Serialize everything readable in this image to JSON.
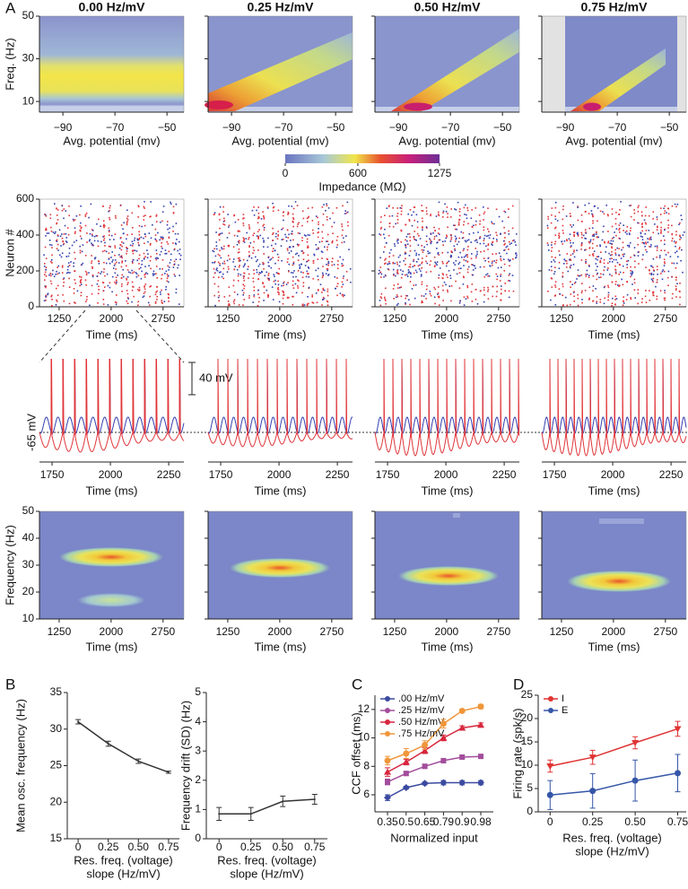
{
  "chart_data": [
    {
      "type": "heatmap-row",
      "panel_label": "A",
      "titles": [
        "0.00 Hz/mV",
        "0.25 Hz/mV",
        "0.50 Hz/mV",
        "0.75 Hz/mV"
      ],
      "ylabel": "Freq. (Hz)",
      "ylim": [
        5,
        50
      ],
      "yticks": [
        10,
        30,
        50
      ],
      "xlabel": "Avg. potential (mv)",
      "xlim": [
        -99,
        -43.5
      ],
      "xticks": [
        {
          "value": -90,
          "label": "−90"
        },
        {
          "value": -70,
          "label": "−70"
        },
        {
          "value": -50,
          "label": "−50"
        }
      ],
      "colorbar": {
        "label": "Impedance (MΩ)",
        "lim": [
          0,
          1275
        ],
        "ticks": [
          0,
          600,
          1275
        ]
      }
    },
    {
      "type": "raster",
      "ylabel": "Neuron #",
      "ylim": [
        0,
        600
      ],
      "yticks": [
        0,
        200,
        400,
        600
      ],
      "xlabel": "Time (ms)",
      "xlim": [
        966,
        3050
      ],
      "xticks": [
        1250,
        2000,
        2750
      ]
    },
    {
      "type": "trace",
      "baseline_label": "-65 mV",
      "scale_bar_label": "40 mV",
      "xlabel": "Time (ms)",
      "xlim": [
        1696,
        2315
      ],
      "xticks": [
        1750,
        2000,
        2250
      ]
    },
    {
      "type": "spectrogram",
      "ylabel": "Frequency (Hz)",
      "ylim": [
        10,
        50
      ],
      "yticks": [
        10,
        20,
        30,
        40,
        50
      ],
      "xlabel": "Time (ms)",
      "xlim": [
        966,
        3050
      ],
      "xticks": [
        1250,
        2000,
        2750
      ]
    },
    {
      "type": "line",
      "panel_label": "B",
      "ylabel": "Mean osc. frequency (Hz)",
      "xlabel": [
        "Res. freq. (voltage)",
        "slope (Hz/mV)"
      ],
      "x": [
        0,
        0.25,
        0.5,
        0.75
      ],
      "xlim": [
        -0.09,
        0.84
      ],
      "xticks": [
        0,
        0.25,
        {
          "value": 0.5,
          "label": "0.50"
        },
        0.75
      ],
      "ylim": [
        15,
        35
      ],
      "yticks": [
        15,
        20,
        25,
        30,
        35
      ],
      "series": [
        {
          "color": "#333333",
          "marker": "none",
          "values": [
            31.0,
            28.0,
            25.6,
            24.1
          ],
          "errors": [
            0.3,
            0.35,
            0.3,
            0.15
          ]
        }
      ]
    },
    {
      "type": "line",
      "ylabel": "Frequency drift (SD) (Hz)",
      "xlabel": [
        "Res. freq. (voltage)",
        "slope (Hz/mV)"
      ],
      "x": [
        0,
        0.25,
        0.5,
        0.75
      ],
      "xlim": [
        -0.1,
        0.85
      ],
      "xticks": [
        0,
        0.25,
        {
          "value": 0.5,
          "label": "0.50"
        },
        0.75
      ],
      "ylim": [
        0,
        5
      ],
      "yticks": [
        0,
        1,
        2,
        3,
        4,
        5
      ],
      "series": [
        {
          "color": "#333333",
          "marker": "none",
          "values": [
            0.85,
            0.85,
            1.28,
            1.35
          ],
          "errors": [
            0.22,
            0.22,
            0.18,
            0.17
          ]
        }
      ]
    },
    {
      "type": "line",
      "panel_label": "C",
      "ylabel": "CCF offset (ms)",
      "xlabel": [
        "Normalized input"
      ],
      "categories": [
        "0.35",
        "0.5",
        "0.65",
        "0.79",
        "0.9",
        "0.98"
      ],
      "ylim": [
        4.8,
        13
      ],
      "yticks": [
        6,
        8,
        10,
        12
      ],
      "legend": "upper-left",
      "series": [
        {
          "name": ".00 Hz/mV",
          "color": "#3b4aa0",
          "marker": "diamond",
          "values": [
            5.8,
            6.5,
            6.8,
            6.85,
            6.85,
            6.85
          ],
          "errors": [
            0.2,
            0.1,
            0.1,
            0.15,
            0.15,
            0.15
          ]
        },
        {
          "name": ".25 Hz/mV",
          "color": "#a34d9c",
          "marker": "square",
          "values": [
            6.9,
            7.5,
            8.0,
            8.4,
            8.65,
            8.7
          ],
          "errors": [
            0.2,
            0.15,
            0.15,
            0.15,
            0.1,
            0.1
          ]
        },
        {
          "name": ".50 Hz/mV",
          "color": "#d7263d",
          "marker": "triangle",
          "values": [
            7.6,
            8.3,
            9.1,
            10.0,
            10.7,
            10.9
          ],
          "errors": [
            0.3,
            0.2,
            0.2,
            0.2,
            0.15,
            0.15
          ]
        },
        {
          "name": ".75 Hz/mV",
          "color": "#f0963a",
          "marker": "circle",
          "values": [
            8.4,
            8.9,
            9.5,
            11.0,
            11.9,
            12.2
          ],
          "errors": [
            0.3,
            0.35,
            0.3,
            0.3,
            0.1,
            0.15
          ]
        }
      ]
    },
    {
      "type": "line",
      "panel_label": "D",
      "ylabel": "Firing rate (spk/s)",
      "xlabel": [
        "Res. freq. (voltage)",
        "slope (Hz/mV)"
      ],
      "x": [
        0,
        0.25,
        0.5,
        0.75
      ],
      "xlim": [
        -0.07,
        0.8
      ],
      "xticks": [
        0,
        0.25,
        {
          "value": 0.5,
          "label": "0.50"
        },
        0.75
      ],
      "ylim": [
        0,
        25
      ],
      "yticks": [
        0,
        5,
        10,
        15,
        20,
        25
      ],
      "legend": "upper-left",
      "series": [
        {
          "name": "I",
          "color": "#e03434",
          "marker": "triangle-down",
          "values": [
            9.8,
            11.7,
            14.8,
            17.8
          ],
          "errors": [
            1.3,
            1.5,
            1.3,
            1.6
          ]
        },
        {
          "name": "E",
          "color": "#3556a8",
          "marker": "circle",
          "values": [
            3.6,
            4.5,
            6.7,
            8.3
          ],
          "errors": [
            3.1,
            3.7,
            4.4,
            4.0
          ]
        }
      ]
    }
  ]
}
